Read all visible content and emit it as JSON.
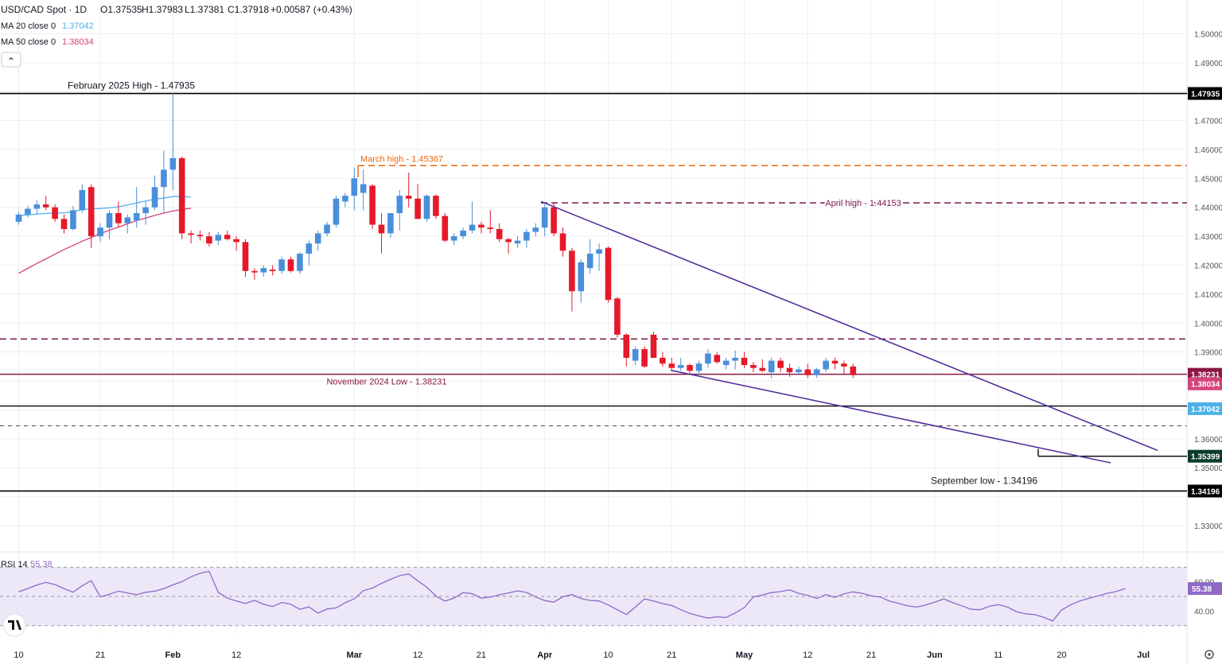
{
  "header": {
    "title": "USD/CAD Spot · 1D",
    "open": "O1.37535",
    "high": "H1.37983",
    "low": "L1.37381",
    "close": "C1.37918",
    "change": "+0.00587 (+0.43%)",
    "ma20_label": "MA 20 close 0",
    "ma20_value": "1.37042",
    "ma50_label": "MA 50 close 0",
    "ma50_value": "1.38034",
    "collapse_glyph": "⌃"
  },
  "colors": {
    "up": "#4a8fdb",
    "down": "#e5192a",
    "ma20": "#4db1e8",
    "ma50": "#d4427a",
    "rsi": "#8e6ac6",
    "rsi_band": "#ece8f8",
    "trend": "#54319e",
    "march": "#e8680f",
    "april": "#7b1750",
    "nov": "#8a1744",
    "grid": "#eeeeee",
    "text": "#131722",
    "axis_text": "#555555"
  },
  "chart_data": [
    {
      "type": "candlestick",
      "title": "USD/CAD Spot · 1D",
      "ylim": [
        1.32505,
        1.50505
      ],
      "y_ticks": [
        "1.50000",
        "1.49000",
        "1.48000",
        "1.47000",
        "1.46000",
        "1.45000",
        "1.44000",
        "1.43000",
        "1.42000",
        "1.41000",
        "1.40000",
        "1.39000",
        "1.38000",
        "1.37000",
        "1.36000",
        "1.35000",
        "1.34000",
        "1.33000"
      ],
      "x_ticks": [
        {
          "i": 0,
          "label": "10"
        },
        {
          "i": 9,
          "label": "21"
        },
        {
          "i": 17,
          "label": "Feb"
        },
        {
          "i": 24,
          "label": "12"
        },
        {
          "i": 37,
          "label": "Mar"
        },
        {
          "i": 44,
          "label": "12"
        },
        {
          "i": 51,
          "label": "21"
        },
        {
          "i": 58,
          "label": "Apr"
        },
        {
          "i": 65,
          "label": "10"
        },
        {
          "i": 72,
          "label": "21"
        },
        {
          "i": 80,
          "label": "May"
        },
        {
          "i": 87,
          "label": "12"
        },
        {
          "i": 94,
          "label": "21"
        },
        {
          "i": 101,
          "label": "Jun"
        },
        {
          "i": 108,
          "label": "11"
        },
        {
          "i": 115,
          "label": "20"
        },
        {
          "i": 124,
          "label": "Jul"
        }
      ],
      "candles": [
        [
          1.435,
          1.4385,
          1.434,
          1.4375
        ],
        [
          1.4375,
          1.4405,
          1.4365,
          1.4395
        ],
        [
          1.4395,
          1.4425,
          1.4375,
          1.441
        ],
        [
          1.441,
          1.444,
          1.439,
          1.44
        ],
        [
          1.44,
          1.441,
          1.435,
          1.436
        ],
        [
          1.436,
          1.4375,
          1.431,
          1.4325
        ],
        [
          1.4325,
          1.4405,
          1.432,
          1.439
        ],
        [
          1.439,
          1.448,
          1.438,
          1.446
        ],
        [
          1.447,
          1.448,
          1.426,
          1.43
        ],
        [
          1.43,
          1.4345,
          1.428,
          1.433
        ],
        [
          1.433,
          1.439,
          1.429,
          1.438
        ],
        [
          1.438,
          1.442,
          1.433,
          1.4345
        ],
        [
          1.4345,
          1.4375,
          1.431,
          1.4365
        ],
        [
          1.4355,
          1.447,
          1.433,
          1.438
        ],
        [
          1.438,
          1.442,
          1.434,
          1.44
        ],
        [
          1.44,
          1.451,
          1.439,
          1.447
        ],
        [
          1.447,
          1.4595,
          1.438,
          1.453
        ],
        [
          1.453,
          1.4794,
          1.446,
          1.457
        ],
        [
          1.457,
          1.4575,
          1.429,
          1.431
        ],
        [
          1.431,
          1.432,
          1.4275,
          1.4305
        ],
        [
          1.4305,
          1.432,
          1.4285,
          1.43
        ],
        [
          1.43,
          1.4315,
          1.4265,
          1.4275
        ],
        [
          1.4285,
          1.4315,
          1.427,
          1.4305
        ],
        [
          1.4305,
          1.432,
          1.4285,
          1.429
        ],
        [
          1.429,
          1.43,
          1.425,
          1.428
        ],
        [
          1.428,
          1.429,
          1.416,
          1.418
        ],
        [
          1.418,
          1.419,
          1.415,
          1.4175
        ],
        [
          1.4175,
          1.42,
          1.416,
          1.419
        ],
        [
          1.4185,
          1.42,
          1.4165,
          1.418
        ],
        [
          1.418,
          1.423,
          1.417,
          1.422
        ],
        [
          1.422,
          1.423,
          1.4175,
          1.418
        ],
        [
          1.418,
          1.4245,
          1.417,
          1.424
        ],
        [
          1.424,
          1.4285,
          1.42,
          1.4275
        ],
        [
          1.4275,
          1.432,
          1.425,
          1.431
        ],
        [
          1.431,
          1.435,
          1.43,
          1.434
        ],
        [
          1.434,
          1.444,
          1.433,
          1.443
        ],
        [
          1.442,
          1.445,
          1.44,
          1.444
        ],
        [
          1.444,
          1.4537,
          1.439,
          1.45
        ],
        [
          1.445,
          1.453,
          1.439,
          1.448
        ],
        [
          1.4475,
          1.448,
          1.4325,
          1.434
        ],
        [
          1.434,
          1.438,
          1.424,
          1.431
        ],
        [
          1.431,
          1.438,
          1.4295,
          1.438
        ],
        [
          1.438,
          1.446,
          1.432,
          1.444
        ],
        [
          1.444,
          1.452,
          1.44,
          1.443
        ],
        [
          1.443,
          1.448,
          1.436,
          1.436
        ],
        [
          1.436,
          1.4445,
          1.435,
          1.444
        ],
        [
          1.444,
          1.4445,
          1.436,
          1.437
        ],
        [
          1.437,
          1.438,
          1.428,
          1.4285
        ],
        [
          1.4285,
          1.431,
          1.427,
          1.43
        ],
        [
          1.43,
          1.433,
          1.429,
          1.432
        ],
        [
          1.432,
          1.442,
          1.431,
          1.434
        ],
        [
          1.434,
          1.435,
          1.431,
          1.433
        ],
        [
          1.433,
          1.439,
          1.431,
          1.4325
        ],
        [
          1.4325,
          1.4345,
          1.428,
          1.429
        ],
        [
          1.429,
          1.4295,
          1.424,
          1.428
        ],
        [
          1.4275,
          1.43,
          1.426,
          1.4285
        ],
        [
          1.4285,
          1.4325,
          1.426,
          1.4315
        ],
        [
          1.4315,
          1.4345,
          1.43,
          1.433
        ],
        [
          1.433,
          1.441,
          1.43,
          1.44
        ],
        [
          1.44,
          1.4415,
          1.43,
          1.431
        ],
        [
          1.431,
          1.433,
          1.423,
          1.425
        ],
        [
          1.425,
          1.426,
          1.404,
          1.411
        ],
        [
          1.411,
          1.422,
          1.407,
          1.421
        ],
        [
          1.419,
          1.429,
          1.417,
          1.424
        ],
        [
          1.424,
          1.4275,
          1.418,
          1.4255
        ],
        [
          1.426,
          1.4265,
          1.407,
          1.408
        ],
        [
          1.4085,
          1.409,
          1.395,
          1.396
        ],
        [
          1.396,
          1.3965,
          1.385,
          1.388
        ],
        [
          1.387,
          1.392,
          1.3855,
          1.391
        ],
        [
          1.391,
          1.392,
          1.3845,
          1.385
        ],
        [
          1.396,
          1.397,
          1.388,
          1.388
        ],
        [
          1.388,
          1.39,
          1.385,
          1.386
        ],
        [
          1.386,
          1.388,
          1.384,
          1.3845
        ],
        [
          1.3845,
          1.388,
          1.3835,
          1.3855
        ],
        [
          1.3855,
          1.386,
          1.382,
          1.3835
        ],
        [
          1.3835,
          1.387,
          1.382,
          1.386
        ],
        [
          1.386,
          1.391,
          1.3845,
          1.3895
        ],
        [
          1.389,
          1.39,
          1.386,
          1.3865
        ],
        [
          1.3855,
          1.388,
          1.384,
          1.387
        ],
        [
          1.387,
          1.3905,
          1.384,
          1.388
        ],
        [
          1.388,
          1.39,
          1.3845,
          1.3855
        ],
        [
          1.3855,
          1.3865,
          1.383,
          1.3845
        ],
        [
          1.3845,
          1.3875,
          1.383,
          1.3835
        ],
        [
          1.383,
          1.388,
          1.381,
          1.387
        ],
        [
          1.387,
          1.388,
          1.383,
          1.3845
        ],
        [
          1.3845,
          1.386,
          1.3815,
          1.383
        ],
        [
          1.383,
          1.385,
          1.382,
          1.384
        ],
        [
          1.384,
          1.386,
          1.381,
          1.382
        ],
        [
          1.382,
          1.3845,
          1.381,
          1.384
        ],
        [
          1.384,
          1.388,
          1.383,
          1.387
        ],
        [
          1.387,
          1.388,
          1.384,
          1.386
        ],
        [
          1.386,
          1.387,
          1.382,
          1.385
        ],
        [
          1.385,
          1.386,
          1.381,
          1.382
        ]
      ],
      "ma20": [
        1.4372,
        1.4374,
        1.4376,
        1.4379,
        1.438,
        1.4381,
        1.4385,
        1.4392,
        1.4395,
        1.4396,
        1.4398,
        1.4402,
        1.4408,
        1.4415,
        1.4422,
        1.4428,
        1.4432,
        1.4437,
        1.4438,
        1.4435
      ],
      "ma50": [
        1.4172,
        1.4189,
        1.4206,
        1.4222,
        1.4238,
        1.4254,
        1.4268,
        1.4283,
        1.4296,
        1.4309,
        1.4321,
        1.4332,
        1.4343,
        1.4354,
        1.4363,
        1.4372,
        1.438,
        1.4387,
        1.4393,
        1.4397
      ],
      "rsi": {
        "label": "RSI 14",
        "value": "55.38",
        "value_tag": "55.38",
        "band": [
          30,
          70
        ],
        "mid": 50,
        "ylim": [
          25,
          75
        ],
        "y_ticks": [
          "60.00",
          "40.00"
        ],
        "values": [
          53.2,
          55.4,
          57.8,
          59.6,
          58.1,
          55.4,
          52.9,
          57.3,
          60.8,
          49.7,
          51.5,
          53.6,
          52.4,
          51.2,
          52.8,
          53.6,
          55.4,
          57.9,
          60.1,
          63.4,
          65.8,
          67.2,
          52.8,
          48.8,
          46.9,
          45.2,
          47.3,
          44.6,
          43.1,
          45.9,
          44.6,
          41.2,
          42.9,
          38.6,
          41.4,
          42.2,
          45.7,
          48.3,
          53.9,
          55.7,
          58.9,
          61.7,
          64.2,
          65.4,
          60.7,
          56.3,
          50.3,
          46.8,
          48.9,
          52.6,
          51.9,
          48.8,
          49.6,
          51.1,
          52.4,
          53.8,
          52.7,
          49.6,
          47.2,
          46.1,
          49.8,
          51.3,
          48.6,
          47.3,
          46.9,
          44.2,
          40.9,
          37.6,
          42.8,
          48.3,
          46.9,
          45.1,
          43.8,
          40.9,
          38.4,
          36.7,
          35.2,
          36.1,
          35.6,
          38.7,
          42.4,
          49.6,
          50.9,
          52.6,
          53.3,
          54.5,
          52.1,
          50.7,
          48.6,
          51.2,
          49.4,
          51.8,
          53.1,
          52.1,
          50.4,
          49.6,
          46.8,
          45.3,
          43.6,
          42.7,
          44.2,
          46.1,
          48.3,
          45.7,
          43.6,
          41.2,
          40.9,
          43.2,
          44.4,
          42.8,
          39.6,
          38.1,
          37.6,
          35.8,
          33.2,
          40.8,
          44.3,
          46.9,
          48.7,
          50.3,
          52.1,
          53.3,
          55.38
        ]
      },
      "annotations": {
        "feb_high": "February 2025 High - 1.47935",
        "march_high": "March high - 1.45367",
        "april_high": "April high - 1.44153",
        "nov_low": "November 2024 Low - 1.38231",
        "sept_low": "September low - 1.34196"
      },
      "price_tags": {
        "feb_high": "1.47935",
        "nov_low": "1.38231",
        "ma50": "1.38034",
        "ma20": "1.37042",
        "support": "1.35399",
        "sept_low": "1.34196"
      }
    }
  ]
}
